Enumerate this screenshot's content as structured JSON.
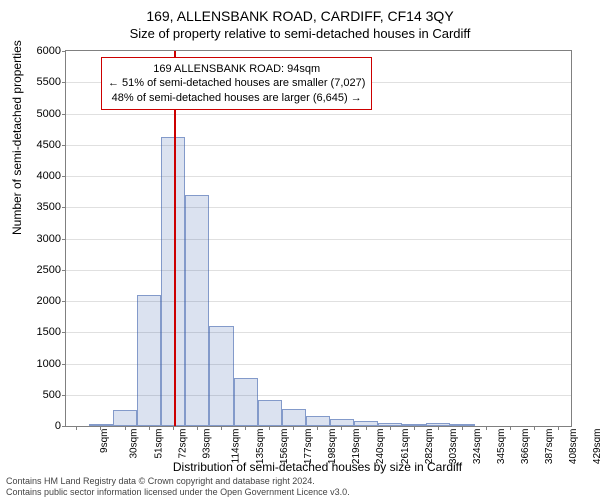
{
  "header": {
    "address": "169, ALLENSBANK ROAD, CARDIFF, CF14 3QY",
    "subtitle": "Size of property relative to semi-detached houses in Cardiff"
  },
  "chart": {
    "type": "histogram",
    "ylabel": "Number of semi-detached properties",
    "xlabel": "Distribution of semi-detached houses by size in Cardiff",
    "ylim": [
      0,
      6000
    ],
    "ytick_step": 500,
    "yticks": [
      0,
      500,
      1000,
      1500,
      2000,
      2500,
      3000,
      3500,
      4000,
      4500,
      5000,
      5500,
      6000
    ],
    "xlim": [
      0,
      440
    ],
    "xticks": [
      9,
      30,
      51,
      72,
      93,
      114,
      135,
      156,
      177,
      198,
      219,
      240,
      261,
      282,
      303,
      324,
      345,
      366,
      387,
      408,
      429
    ],
    "xtick_unit": "sqm",
    "bar_fill": "rgba(58,95,172,0.18)",
    "bar_stroke": "rgba(58,95,172,0.55)",
    "grid_color": "#e0e0e0",
    "border_color": "#808080",
    "background_color": "#ffffff",
    "bin_width_sqm": 21,
    "reference_line": {
      "x": 94,
      "color": "#cc0000",
      "width": 2
    },
    "bins": [
      {
        "x_start": 20,
        "count": 20
      },
      {
        "x_start": 41,
        "count": 250
      },
      {
        "x_start": 62,
        "count": 2100
      },
      {
        "x_start": 83,
        "count": 4620
      },
      {
        "x_start": 104,
        "count": 3700
      },
      {
        "x_start": 125,
        "count": 1600
      },
      {
        "x_start": 146,
        "count": 770
      },
      {
        "x_start": 167,
        "count": 420
      },
      {
        "x_start": 188,
        "count": 280
      },
      {
        "x_start": 209,
        "count": 160
      },
      {
        "x_start": 230,
        "count": 110
      },
      {
        "x_start": 251,
        "count": 80
      },
      {
        "x_start": 272,
        "count": 50
      },
      {
        "x_start": 293,
        "count": 40
      },
      {
        "x_start": 314,
        "count": 50
      },
      {
        "x_start": 335,
        "count": 20
      }
    ]
  },
  "annotation": {
    "line1": "169 ALLENSBANK ROAD: 94sqm",
    "line2": "← 51% of semi-detached houses are smaller (7,027)",
    "line3": "48% of semi-detached houses are larger (6,645) →",
    "border_color": "#cc0000"
  },
  "footer": {
    "line1": "Contains HM Land Registry data © Crown copyright and database right 2024.",
    "line2": "Contains public sector information licensed under the Open Government Licence v3.0."
  }
}
